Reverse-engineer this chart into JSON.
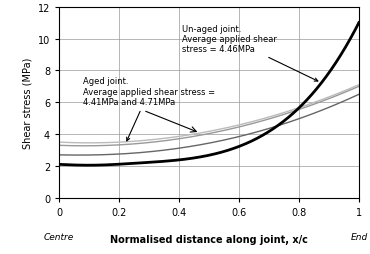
{
  "xlabel": "Normalised distance along joint, x/c",
  "ylabel": "Shear stress (MPa)",
  "xlim": [
    0,
    1
  ],
  "ylim": [
    0,
    12
  ],
  "xticks": [
    0,
    0.2,
    0.4,
    0.6,
    0.8,
    1.0
  ],
  "yticks": [
    0,
    2,
    4,
    6,
    8,
    10,
    12
  ],
  "xtick_labels": [
    "0",
    "0.2",
    "0.4",
    "0.6",
    "0.8",
    "1"
  ],
  "annotation_unaged": "Un-aged joint.\nAverage applied shear\nstress = 4.46MPa",
  "annotation_aged": "Aged joint.\nAverage applied shear stress =\n4.41MPa and 4.71MPa",
  "unaged_color": "#000000",
  "aged1_color": "#999999",
  "aged2_color": "#bbbbbb",
  "aged3_color": "#666666",
  "unaged_lw": 2.0,
  "aged_lw": 1.0,
  "background_color": "#ffffff",
  "grid_color": "#999999"
}
